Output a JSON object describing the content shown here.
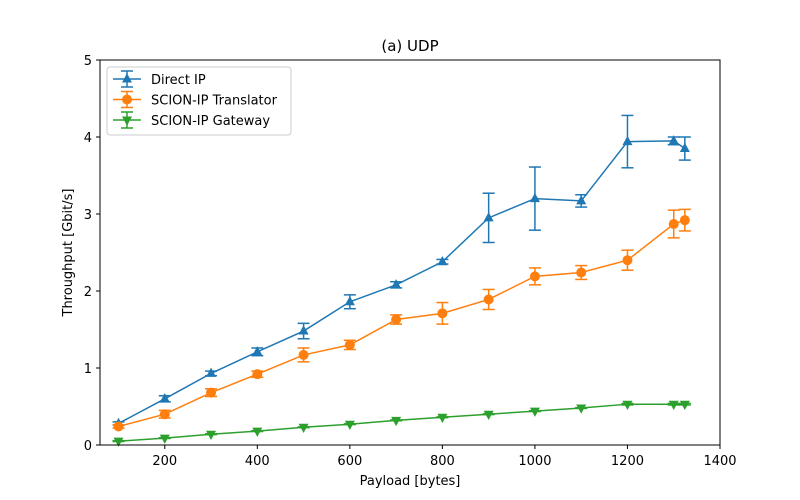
{
  "chart_data": {
    "type": "line",
    "title": "(a) UDP",
    "xlabel": "Payload [bytes]",
    "ylabel": "Throughput [Gbit/s]",
    "xlim": [
      60,
      1400
    ],
    "ylim": [
      0,
      5
    ],
    "xticks": [
      200,
      400,
      600,
      800,
      1000,
      1200,
      1400
    ],
    "yticks": [
      0,
      1,
      2,
      3,
      4,
      5
    ],
    "grid": false,
    "legend_position": "upper-left",
    "series": [
      {
        "name": "Direct IP",
        "color": "#1f77b4",
        "marker": "triangle-up",
        "x": [
          100,
          200,
          300,
          400,
          500,
          600,
          700,
          800,
          900,
          1000,
          1100,
          1200,
          1300,
          1324
        ],
        "y": [
          0.28,
          0.6,
          0.93,
          1.21,
          1.48,
          1.86,
          2.08,
          2.38,
          2.95,
          3.2,
          3.17,
          3.94,
          3.95,
          3.85
        ],
        "err": [
          0.02,
          0.04,
          0.03,
          0.05,
          0.1,
          0.09,
          0.04,
          0.03,
          0.32,
          0.41,
          0.08,
          0.34,
          0.05,
          0.15
        ]
      },
      {
        "name": "SCION-IP Translator",
        "color": "#ff7f0e",
        "marker": "circle",
        "x": [
          100,
          200,
          300,
          400,
          500,
          600,
          700,
          800,
          900,
          1000,
          1100,
          1200,
          1300,
          1324
        ],
        "y": [
          0.24,
          0.4,
          0.68,
          0.92,
          1.17,
          1.3,
          1.63,
          1.71,
          1.89,
          2.19,
          2.24,
          2.4,
          2.87,
          2.92
        ],
        "err": [
          0.02,
          0.05,
          0.05,
          0.04,
          0.09,
          0.06,
          0.06,
          0.14,
          0.13,
          0.11,
          0.09,
          0.13,
          0.18,
          0.14
        ]
      },
      {
        "name": "SCION-IP Gateway",
        "color": "#2ca02c",
        "marker": "triangle-down",
        "x": [
          100,
          200,
          300,
          400,
          500,
          600,
          700,
          800,
          900,
          1000,
          1100,
          1200,
          1300,
          1324
        ],
        "y": [
          0.05,
          0.09,
          0.14,
          0.18,
          0.23,
          0.27,
          0.32,
          0.36,
          0.4,
          0.44,
          0.48,
          0.53,
          0.53,
          0.53
        ],
        "err": [
          0.005,
          0.005,
          0.005,
          0.005,
          0.005,
          0.005,
          0.005,
          0.005,
          0.005,
          0.005,
          0.005,
          0.01,
          0.01,
          0.01
        ]
      }
    ]
  }
}
